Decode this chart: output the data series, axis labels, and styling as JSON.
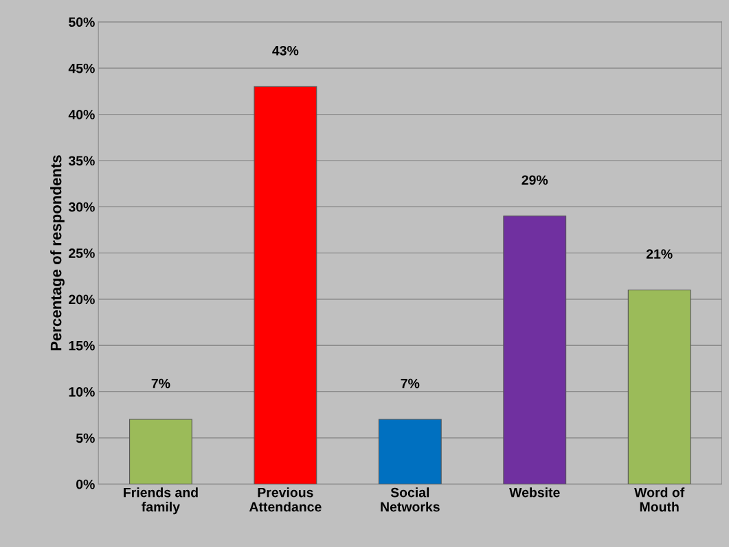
{
  "chart_data": {
    "type": "bar",
    "ylabel": "Percentage of respondents",
    "categories": [
      "Friends and family",
      "Previous Attendance",
      "Social Networks",
      "Website",
      "Word of Mouth"
    ],
    "values": [
      7,
      43,
      7,
      29,
      21
    ],
    "colors": [
      "#9bbb59",
      "#ff0000",
      "#0070c0",
      "#7030a0",
      "#9bbb59"
    ],
    "value_labels": [
      "7%",
      "43%",
      "7%",
      "29%",
      "21%"
    ],
    "ylim": [
      0,
      50
    ],
    "yticks": [
      {
        "value": 0,
        "label": "0%"
      },
      {
        "value": 5,
        "label": "5%"
      },
      {
        "value": 10,
        "label": "10%"
      },
      {
        "value": 15,
        "label": "15%"
      },
      {
        "value": 20,
        "label": "20%"
      },
      {
        "value": 25,
        "label": "25%"
      },
      {
        "value": 30,
        "label": "30%"
      },
      {
        "value": 35,
        "label": "35%"
      },
      {
        "value": 40,
        "label": "40%"
      },
      {
        "value": 45,
        "label": "45%"
      },
      {
        "value": 50,
        "label": "50%"
      }
    ],
    "grid": "y"
  }
}
